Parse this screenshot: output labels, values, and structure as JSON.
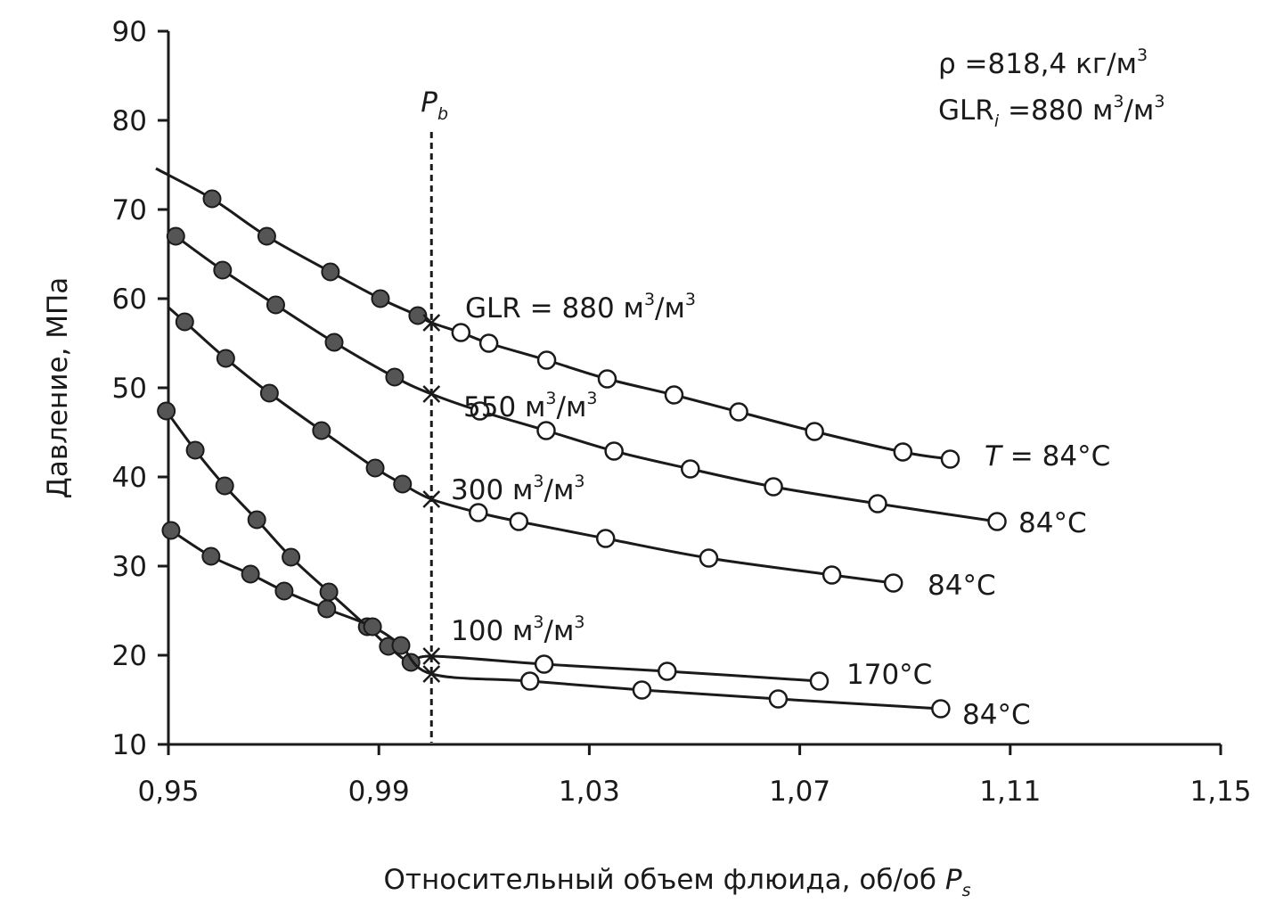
{
  "chart_data": {
    "type": "line",
    "xlabel": "Относительный объем флюида, об/об",
    "xlabel_symbol": "P",
    "xlabel_symbol_sub": "s",
    "ylabel": "Давление, МПа",
    "xlim": [
      0.95,
      1.15
    ],
    "ylim": [
      10,
      90
    ],
    "x_ticks": [
      0.95,
      0.99,
      1.03,
      1.07,
      1.11,
      1.15
    ],
    "x_tick_labels": [
      "0,95",
      "0,99",
      "1,03",
      "1,07",
      "1,11",
      "1,15"
    ],
    "y_ticks": [
      10,
      20,
      30,
      40,
      50,
      60,
      70,
      80,
      90
    ],
    "y_tick_labels": [
      "10",
      "20",
      "30",
      "40",
      "50",
      "60",
      "70",
      "80",
      "90"
    ],
    "grid": false,
    "bubble_point": {
      "x": 1.0,
      "label": "P",
      "label_sub": "b",
      "points": [
        {
          "series": 0,
          "y": 57.3
        },
        {
          "series": 1,
          "y": 49.3
        },
        {
          "series": 2,
          "y": 37.5
        },
        {
          "series": 3,
          "y": 19.9
        },
        {
          "series": 4,
          "y": 17.9
        }
      ]
    },
    "info": {
      "rho_label": "ρ =818,4 кг/м",
      "rho_sup": "3",
      "glr_prefix": "GLR",
      "glr_sub": "i",
      "glr_label": " =880 м",
      "glr_sup1": "3",
      "glr_mid": "/м",
      "glr_sup2": "3"
    },
    "series": [
      {
        "curve_label_parts": [
          "GLR = 880 м",
          "3",
          "/м",
          "3"
        ],
        "temp_label_prefix": "T",
        "temp_label": " = 84",
        "temp_unit": "°C",
        "below_bubble": [
          [
            0.9583,
            71.2
          ],
          [
            0.9687,
            67.0
          ],
          [
            0.9808,
            63.0
          ],
          [
            0.9903,
            60.0
          ],
          [
            0.9974,
            58.1
          ]
        ],
        "above_bubble": [
          [
            1.0056,
            56.2
          ],
          [
            1.0109,
            55.0
          ],
          [
            1.0219,
            53.1
          ],
          [
            1.0334,
            51.0
          ],
          [
            1.0461,
            49.2
          ],
          [
            1.0584,
            47.3
          ],
          [
            1.0728,
            45.1
          ],
          [
            1.0896,
            42.8
          ],
          [
            1.0986,
            42.0
          ]
        ]
      },
      {
        "curve_label_parts": [
          "550 м",
          "3",
          "/м",
          "3"
        ],
        "temp_label": "84",
        "temp_unit": "°C",
        "below_bubble": [
          [
            0.9514,
            67.0
          ],
          [
            0.9603,
            63.2
          ],
          [
            0.9704,
            59.3
          ],
          [
            0.9815,
            55.1
          ],
          [
            0.993,
            51.2
          ]
        ],
        "above_bubble": [
          [
            1.0092,
            47.4
          ],
          [
            1.0218,
            45.2
          ],
          [
            1.0347,
            42.9
          ],
          [
            1.0492,
            40.9
          ],
          [
            1.065,
            38.9
          ],
          [
            1.0848,
            37.0
          ],
          [
            1.1075,
            35.0
          ]
        ]
      },
      {
        "curve_label_parts": [
          "300 м",
          "3",
          "/м",
          "3"
        ],
        "temp_label": "84",
        "temp_unit": "°C",
        "below_bubble": [
          [
            0.9531,
            57.4
          ],
          [
            0.9609,
            53.3
          ],
          [
            0.9692,
            49.4
          ],
          [
            0.9791,
            45.2
          ],
          [
            0.9893,
            41.0
          ],
          [
            0.9945,
            39.2
          ]
        ],
        "above_bubble": [
          [
            1.0089,
            36.0
          ],
          [
            1.0166,
            35.0
          ],
          [
            1.0331,
            33.1
          ],
          [
            1.0527,
            30.9
          ],
          [
            1.0761,
            29.0
          ],
          [
            1.0878,
            28.1
          ]
        ]
      },
      {
        "curve_label_parts": [
          "100 м",
          "3",
          "/м",
          "3"
        ],
        "temp_label": "170",
        "temp_unit": "°C",
        "below_bubble": [
          [
            0.9496,
            47.4
          ],
          [
            0.9551,
            43.0
          ],
          [
            0.9607,
            39.0
          ],
          [
            0.9668,
            35.2
          ],
          [
            0.9733,
            31.0
          ],
          [
            0.9805,
            27.1
          ],
          [
            0.9878,
            23.2
          ],
          [
            0.9918,
            21.0
          ],
          [
            0.9961,
            19.2
          ]
        ],
        "above_bubble": [
          [
            1.0214,
            19.0
          ],
          [
            1.0448,
            18.2
          ],
          [
            1.0737,
            17.1
          ]
        ]
      },
      {
        "curve_label_parts": [],
        "temp_label": "84",
        "temp_unit": "°C",
        "below_bubble": [
          [
            0.9505,
            34.0
          ],
          [
            0.9581,
            31.1
          ],
          [
            0.9656,
            29.1
          ],
          [
            0.972,
            27.2
          ],
          [
            0.9801,
            25.2
          ],
          [
            0.9888,
            23.2
          ],
          [
            0.9942,
            21.1
          ]
        ],
        "above_bubble": [
          [
            1.0187,
            17.1
          ],
          [
            1.04,
            16.1
          ],
          [
            1.0659,
            15.1
          ],
          [
            1.0968,
            14.0
          ]
        ]
      }
    ]
  }
}
